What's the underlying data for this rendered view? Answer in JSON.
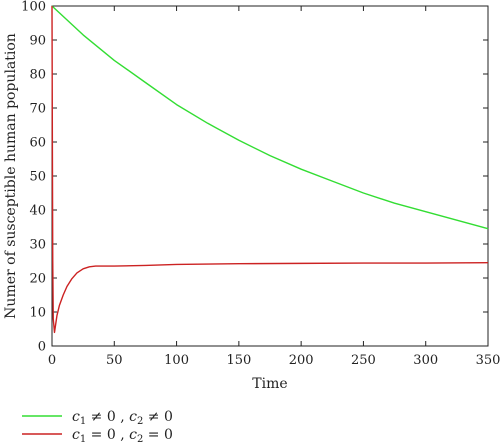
{
  "chart_data": {
    "type": "line",
    "title": "",
    "xlabel": "Time",
    "ylabel": "Numer of susceptible human population",
    "xlim": [
      0,
      350
    ],
    "ylim": [
      0,
      100
    ],
    "xticks": [
      0,
      50,
      100,
      150,
      200,
      250,
      300,
      350
    ],
    "yticks": [
      0,
      10,
      20,
      30,
      40,
      50,
      60,
      70,
      80,
      90,
      100
    ],
    "grid": false,
    "legend_position": "below",
    "series": [
      {
        "name": "c1 ≠ 0 , c2 ≠ 0",
        "color": "#33dd33",
        "x": [
          0,
          25,
          50,
          75,
          100,
          125,
          150,
          175,
          200,
          225,
          250,
          275,
          300,
          325,
          350
        ],
        "y": [
          100,
          91.5,
          84,
          77.5,
          71,
          65.5,
          60.5,
          56,
          52,
          48.5,
          45,
          42,
          39.5,
          37,
          34.5
        ]
      },
      {
        "name": "c1 = 0 , c2 = 0",
        "color": "#cc2222",
        "x": [
          0,
          0.3,
          0.6,
          1,
          2,
          4,
          6,
          9,
          12,
          16,
          20,
          25,
          30,
          35,
          40,
          50,
          75,
          100,
          150,
          200,
          250,
          300,
          350
        ],
        "y": [
          100,
          60,
          25,
          8,
          4,
          9,
          12,
          15,
          17.5,
          19.8,
          21.5,
          22.7,
          23.3,
          23.5,
          23.5,
          23.5,
          23.7,
          24,
          24.2,
          24.3,
          24.4,
          24.4,
          24.5
        ]
      }
    ]
  },
  "legend": {
    "items": [
      {
        "var1": "c",
        "sub1": "1",
        "op1": " ≠ 0 , ",
        "var2": "c",
        "sub2": "2",
        "op2": " ≠ 0",
        "color": "#33dd33"
      },
      {
        "var1": "c",
        "sub1": "1",
        "op1": " = 0 , ",
        "var2": "c",
        "sub2": "2",
        "op2": " = 0",
        "color": "#cc2222"
      }
    ]
  }
}
